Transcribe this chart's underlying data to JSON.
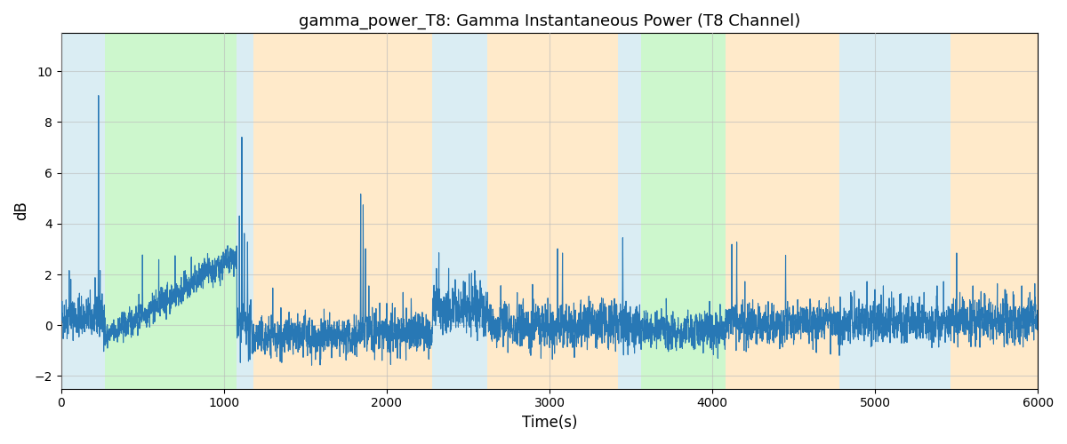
{
  "title": "gamma_power_T8: Gamma Instantaneous Power (T8 Channel)",
  "xlabel": "Time(s)",
  "ylabel": "dB",
  "xlim": [
    0,
    6000
  ],
  "ylim": [
    -2.5,
    11.5
  ],
  "figsize": [
    12,
    5
  ],
  "dpi": 100,
  "line_color": "#2878b5",
  "line_width": 0.8,
  "background_regions": [
    {
      "xstart": 0,
      "xend": 270,
      "color": "#add8e6",
      "alpha": 0.45
    },
    {
      "xstart": 270,
      "xend": 1080,
      "color": "#90ee90",
      "alpha": 0.45
    },
    {
      "xstart": 1080,
      "xend": 1180,
      "color": "#add8e6",
      "alpha": 0.45
    },
    {
      "xstart": 1180,
      "xend": 2280,
      "color": "#ffd9a0",
      "alpha": 0.55
    },
    {
      "xstart": 2280,
      "xend": 2620,
      "color": "#add8e6",
      "alpha": 0.45
    },
    {
      "xstart": 2620,
      "xend": 3420,
      "color": "#ffd9a0",
      "alpha": 0.55
    },
    {
      "xstart": 3420,
      "xend": 3560,
      "color": "#add8e6",
      "alpha": 0.45
    },
    {
      "xstart": 3560,
      "xend": 4080,
      "color": "#90ee90",
      "alpha": 0.45
    },
    {
      "xstart": 4080,
      "xend": 4780,
      "color": "#ffd9a0",
      "alpha": 0.55
    },
    {
      "xstart": 4780,
      "xend": 5460,
      "color": "#add8e6",
      "alpha": 0.45
    },
    {
      "xstart": 5460,
      "xend": 6000,
      "color": "#ffd9a0",
      "alpha": 0.55
    }
  ],
  "grid": true,
  "grid_color": "#bbbbbb",
  "grid_alpha": 0.6,
  "yticks": [
    -2,
    0,
    2,
    4,
    6,
    8,
    10
  ],
  "xticks": [
    0,
    1000,
    2000,
    3000,
    4000,
    5000,
    6000
  ],
  "random_seed": 42,
  "n_points": 6000
}
